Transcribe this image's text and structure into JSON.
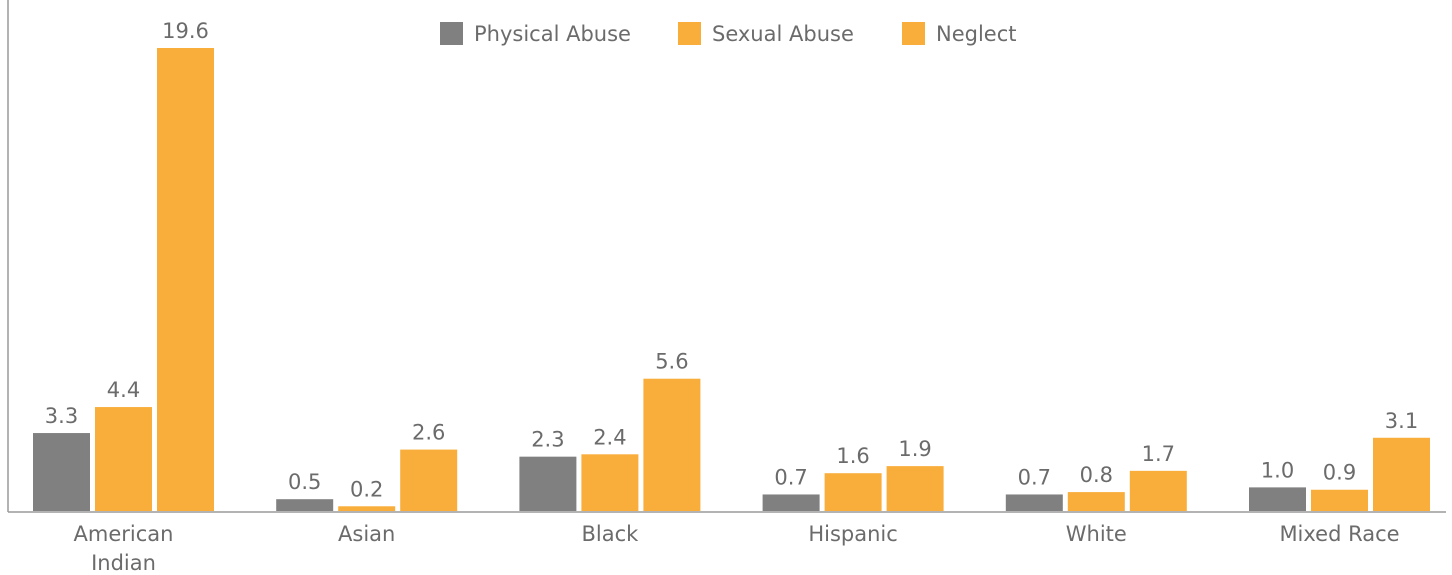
{
  "chart_data": {
    "type": "bar",
    "categories": [
      "American Indian",
      "Asian",
      "Black",
      "Hispanic",
      "White",
      "Mixed Race"
    ],
    "category_lines": [
      [
        "American",
        "Indian"
      ],
      [
        "Asian"
      ],
      [
        "Black"
      ],
      [
        "Hispanic"
      ],
      [
        "White"
      ],
      [
        "Mixed Race"
      ]
    ],
    "series": [
      {
        "name": "Physical Abuse",
        "color": "#808080",
        "values": [
          3.3,
          0.5,
          2.3,
          0.7,
          0.7,
          1.0
        ]
      },
      {
        "name": "Sexual Abuse",
        "color": "#F9AE3B",
        "values": [
          4.4,
          0.2,
          2.4,
          1.6,
          0.8,
          0.9
        ]
      },
      {
        "name": "Neglect",
        "color": "#F9AE3B",
        "values": [
          19.6,
          2.6,
          5.6,
          1.9,
          1.7,
          3.1
        ]
      }
    ],
    "value_labels": [
      [
        "3.3",
        "0.5",
        "2.3",
        "0.7",
        "0.7",
        "1.0"
      ],
      [
        "4.4",
        "0.2",
        "2.4",
        "1.6",
        "0.8",
        "0.9"
      ],
      [
        "19.6",
        "2.6",
        "5.6",
        "1.9",
        "1.7",
        "3.1"
      ]
    ],
    "ylim": [
      0,
      19.6
    ],
    "legend_position": "top-center",
    "grid": false
  }
}
